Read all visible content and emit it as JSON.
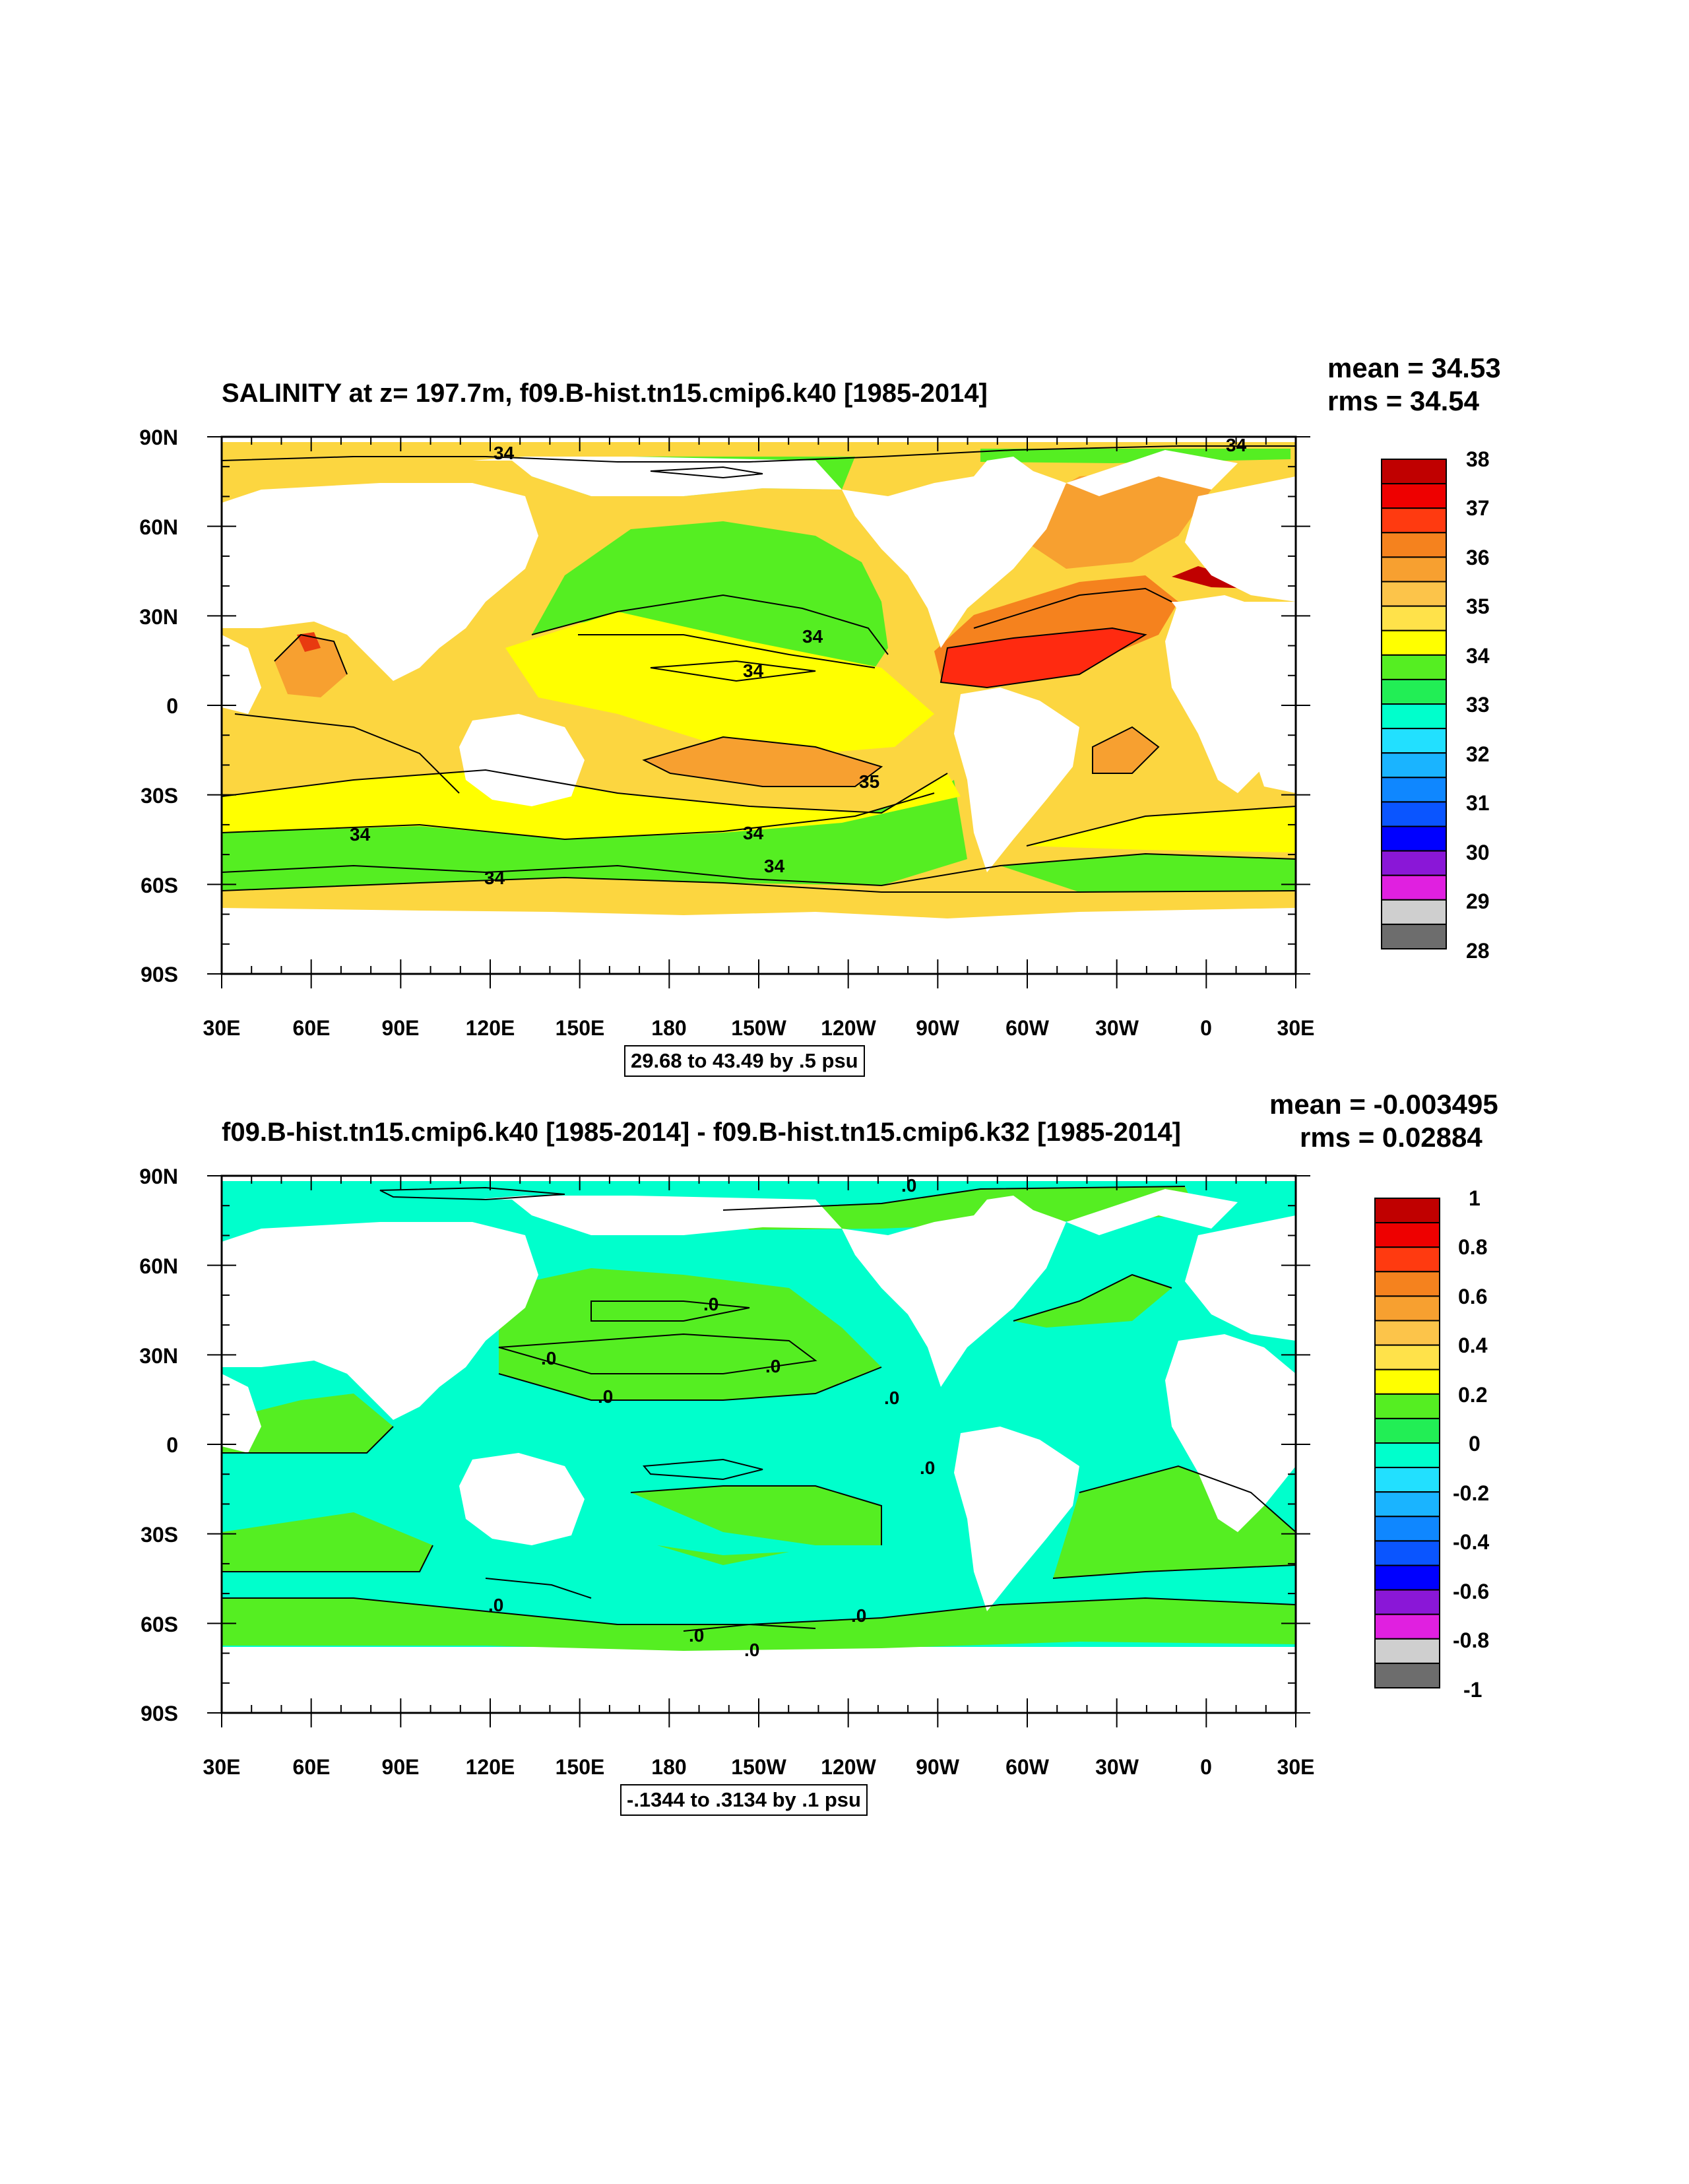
{
  "chart_data": [
    {
      "type": "heatmap",
      "title": "SALINITY at z= 197.7m, f09.B-hist.tn15.cmip6.k40 [1985-2014]",
      "mean_text": "mean = 34.53",
      "rms_text": "rms = 34.54",
      "contour_info": "29.68 to 43.49 by .5 psu",
      "xtick_labels": [
        "30E",
        "60E",
        "90E",
        "120E",
        "150E",
        "180",
        "150W",
        "120W",
        "90W",
        "60W",
        "30W",
        "0",
        "30E"
      ],
      "ytick_labels": [
        "90N",
        "60N",
        "30N",
        "0",
        "30S",
        "60S",
        "90S"
      ],
      "colorbar_labels": [
        "38",
        "37",
        "36",
        "35",
        "34",
        "33",
        "32",
        "31",
        "30",
        "29",
        "28"
      ],
      "colorbar_colors": [
        "#c00000",
        "#ee0000",
        "#ff3a10",
        "#f5821e",
        "#f7a030",
        "#fcc44a",
        "#ffe24a",
        "#ffff00",
        "#55ee22",
        "#22ee55",
        "#00ffcc",
        "#22e0ff",
        "#1ab4ff",
        "#0f87ff",
        "#0a55ff",
        "#0000ff",
        "#8a17d7",
        "#e020e0",
        "#cfcfcf",
        "#6d6d6d"
      ],
      "contour_labels": [
        "34",
        "34",
        "34",
        "34",
        "35",
        "34",
        "34",
        "34",
        "34"
      ]
    },
    {
      "type": "heatmap",
      "title": "f09.B-hist.tn15.cmip6.k40 [1985-2014] - f09.B-hist.tn15.cmip6.k32 [1985-2014]",
      "mean_text": "mean = -0.003495",
      "rms_text": "rms = 0.02884",
      "contour_info": "-.1344 to .3134 by .1 psu",
      "xtick_labels": [
        "30E",
        "60E",
        "90E",
        "120E",
        "150E",
        "180",
        "150W",
        "120W",
        "90W",
        "60W",
        "30W",
        "0",
        "30E"
      ],
      "ytick_labels": [
        "90N",
        "60N",
        "30N",
        "0",
        "30S",
        "60S",
        "90S"
      ],
      "colorbar_labels": [
        "1",
        "0.8",
        "0.6",
        "0.4",
        "0.2",
        "0",
        "-0.2",
        "-0.4",
        "-0.6",
        "-0.8",
        "-1"
      ],
      "colorbar_colors": [
        "#c00000",
        "#ee0000",
        "#ff3a10",
        "#f5821e",
        "#f7a030",
        "#fcc44a",
        "#ffe24a",
        "#ffff00",
        "#55ee22",
        "#22ee55",
        "#00ffcc",
        "#22e0ff",
        "#1ab4ff",
        "#0f87ff",
        "#0a55ff",
        "#0000ff",
        "#8a17d7",
        "#e020e0",
        "#cfcfcf",
        "#6d6d6d"
      ],
      "contour_labels": [
        ".0",
        ".0",
        ".0",
        ".0",
        ".0",
        ".0",
        ".0",
        ".0",
        ".0",
        ".0",
        ".0"
      ]
    }
  ]
}
